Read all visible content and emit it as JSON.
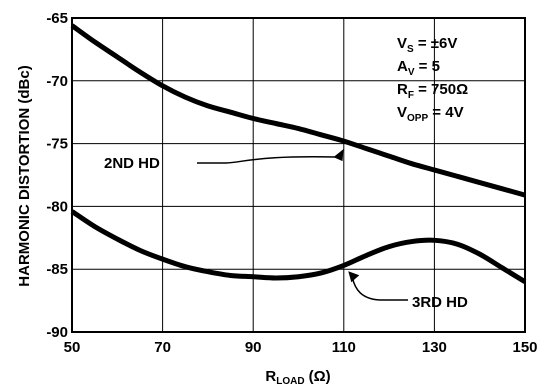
{
  "chart_data": {
    "type": "line",
    "xlabel": {
      "main": "R",
      "sub": "LOAD",
      "unit": "(Ω)"
    },
    "ylabel": "HARMONIC DISTORTION (dBc)",
    "xlim": [
      50,
      150
    ],
    "ylim": [
      -90,
      -65
    ],
    "x_ticks": [
      50,
      70,
      90,
      110,
      130,
      150
    ],
    "y_ticks": [
      -65,
      -70,
      -75,
      -80,
      -85,
      -90
    ],
    "grid": true,
    "conditions": [
      {
        "main": "V",
        "sub": "S",
        "rest": " = ±6V"
      },
      {
        "main": "A",
        "sub": "V",
        "rest": " = 5"
      },
      {
        "main": "R",
        "sub": "F",
        "rest": " = 750Ω"
      },
      {
        "main": "V",
        "sub": "OPP",
        "rest": " = 4V"
      }
    ],
    "series": [
      {
        "name": "2ND HD",
        "x": [
          50,
          55,
          60,
          65,
          70,
          75,
          80,
          85,
          90,
          95,
          100,
          105,
          110,
          115,
          120,
          125,
          130,
          135,
          140,
          145,
          150
        ],
        "y": [
          -65.6,
          -66.9,
          -68.1,
          -69.3,
          -70.4,
          -71.3,
          -72.0,
          -72.5,
          -73.0,
          -73.4,
          -73.8,
          -74.3,
          -74.8,
          -75.4,
          -76.0,
          -76.6,
          -77.1,
          -77.6,
          -78.1,
          -78.6,
          -79.1
        ]
      },
      {
        "name": "3RD HD",
        "x": [
          50,
          55,
          60,
          65,
          70,
          75,
          80,
          85,
          90,
          95,
          100,
          105,
          110,
          115,
          120,
          125,
          130,
          135,
          140,
          145,
          150
        ],
        "y": [
          -80.4,
          -81.6,
          -82.6,
          -83.5,
          -84.2,
          -84.8,
          -85.2,
          -85.5,
          -85.6,
          -85.7,
          -85.6,
          -85.3,
          -84.7,
          -83.9,
          -83.2,
          -82.8,
          -82.7,
          -83.0,
          -83.8,
          -84.9,
          -86.0
        ]
      }
    ],
    "annotations": [
      {
        "text": "2ND HD",
        "series": 0
      },
      {
        "text": "3RD HD",
        "series": 1
      }
    ]
  }
}
